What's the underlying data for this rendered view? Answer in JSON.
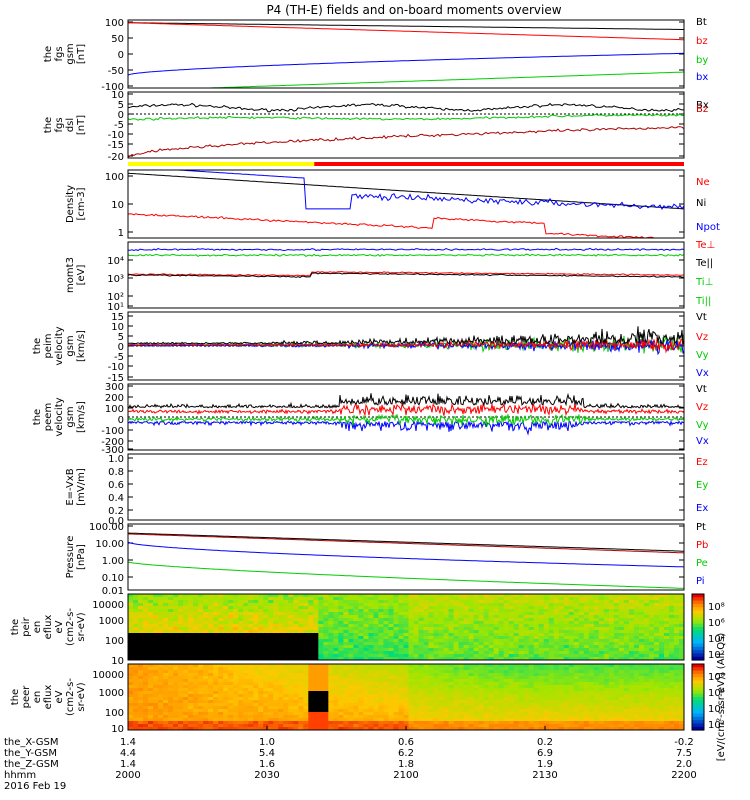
{
  "title": "P4 (TH-E) fields and on-board moments overview",
  "colors": {
    "black": "#000000",
    "red": "#ff0000",
    "green": "#00cc00",
    "blue": "#0000ff",
    "yellow": "#ffff00"
  },
  "chart_data": [
    {
      "type": "line",
      "ylabel": [
        "the",
        "fgs",
        "gsm",
        "[nT]"
      ],
      "ylim": [
        -100,
        100
      ],
      "ticks": [
        "100",
        "50",
        "0",
        "-50",
        "-100"
      ],
      "series": [
        {
          "name": "Bt",
          "color": "#000000"
        },
        {
          "name": "bz",
          "color": "#ff0000"
        },
        {
          "name": "by",
          "color": "#00cc00"
        },
        {
          "name": "bx",
          "color": "#0000ff"
        }
      ]
    },
    {
      "type": "line",
      "ylabel": [
        "the",
        "fgs",
        "dsl",
        "[nT]"
      ],
      "ylim": [
        -20,
        10
      ],
      "ticks": [
        "10",
        "5",
        "0",
        "-5",
        "-10",
        "-15",
        "-20"
      ],
      "series": [
        {
          "name": "Bx",
          "color": "#000000"
        },
        {
          "name": "Bz",
          "color": "#cc0000"
        }
      ]
    },
    {
      "type": "line",
      "ylabel": [
        "Density",
        "[cm-3]"
      ],
      "ylim": [
        1,
        100
      ],
      "scale": "log",
      "ticks": [
        "100",
        "10",
        "1"
      ],
      "series": [
        {
          "name": "Ne",
          "color": "#ff0000"
        },
        {
          "name": "Ni",
          "color": "#000000"
        },
        {
          "name": "Npot",
          "color": "#0000ff"
        }
      ]
    },
    {
      "type": "line",
      "ylabel": [
        "momt3",
        "[eV]"
      ],
      "scale": "log",
      "ticks": [
        "10⁴",
        "10³",
        "10²",
        "10¹"
      ],
      "series": [
        {
          "name": "Te⊥",
          "color": "#ff0000"
        },
        {
          "name": "Te||",
          "color": "#000000"
        },
        {
          "name": "Ti⊥",
          "color": "#00cc00"
        },
        {
          "name": "Ti||",
          "color": "#00cc00"
        }
      ]
    },
    {
      "type": "line",
      "ylabel": [
        "the",
        "peim",
        "velocity",
        "gsm",
        "[km/s]"
      ],
      "ylim": [
        -15,
        15
      ],
      "ticks": [
        "15",
        "10",
        "5",
        "0",
        "-5",
        "-10",
        "-15"
      ],
      "series": [
        {
          "name": "Vt",
          "color": "#000000"
        },
        {
          "name": "Vz",
          "color": "#ff0000"
        },
        {
          "name": "Vy",
          "color": "#00cc00"
        },
        {
          "name": "Vx",
          "color": "#0000ff"
        }
      ]
    },
    {
      "type": "line",
      "ylabel": [
        "the",
        "peem",
        "velocity",
        "gsm",
        "[km/s]"
      ],
      "ylim": [
        -300,
        300
      ],
      "ticks": [
        "300",
        "200",
        "100",
        "0",
        "-100",
        "-200",
        "-300"
      ],
      "series": [
        {
          "name": "Vt",
          "color": "#000000"
        },
        {
          "name": "Vz",
          "color": "#ff0000"
        },
        {
          "name": "Vy",
          "color": "#00cc00"
        },
        {
          "name": "Vx",
          "color": "#0000ff"
        }
      ]
    },
    {
      "type": "line",
      "ylabel": [
        "E=-VxB",
        "[mV/m]"
      ],
      "ylim": [
        0,
        1
      ],
      "ticks": [
        "1.0",
        "0.8",
        "0.6",
        "0.4",
        "0.2",
        "0.0"
      ],
      "series": [
        {
          "name": "Ez",
          "color": "#ff0000"
        },
        {
          "name": "Ey",
          "color": "#00cc00"
        },
        {
          "name": "Ex",
          "color": "#0000ff"
        }
      ]
    },
    {
      "type": "line",
      "ylabel": [
        "Pressure",
        "[nPa]"
      ],
      "ylim": [
        0.01,
        100
      ],
      "scale": "log",
      "ticks": [
        "100.00",
        "10.00",
        "1.00",
        "0.10",
        "0.01"
      ],
      "series": [
        {
          "name": "Pt",
          "color": "#000000"
        },
        {
          "name": "Pb",
          "color": "#ff0000"
        },
        {
          "name": "Pe",
          "color": "#00cc00"
        },
        {
          "name": "Pi",
          "color": "#0000ff"
        }
      ]
    },
    {
      "type": "heatmap",
      "ylabel": [
        "the",
        "peir",
        "en",
        "eflux",
        "eV",
        "(cm2-s-",
        "sr-eV)"
      ],
      "scale": "log",
      "ticks": [
        "10000",
        "1000",
        "100",
        "10"
      ],
      "colorbar_ticks": [
        "10⁸",
        "10⁶",
        "10⁴",
        "10²"
      ]
    },
    {
      "type": "heatmap",
      "ylabel": [
        "the",
        "peer",
        "en",
        "eflux",
        "eV",
        "(cm2-s-",
        "sr-eV)"
      ],
      "scale": "log",
      "ticks": [
        "10000",
        "1000",
        "100",
        "10"
      ],
      "colorbar_ticks": [
        "10⁸",
        "10⁶",
        "10⁴",
        "10²"
      ]
    }
  ],
  "colorbar_label": "[eV/(cm²-s-sr-eV)] (All Qs)",
  "axis": {
    "row_labels": [
      "the_X-GSM",
      "the_Y-GSM",
      "the_Z-GSM",
      "hhmm",
      "2016 Feb 19"
    ],
    "columns": [
      {
        "x": "1.4",
        "y": "4.4",
        "z": "1.4",
        "hhmm": "2000"
      },
      {
        "x": "1.0",
        "y": "5.4",
        "z": "1.6",
        "hhmm": "2030"
      },
      {
        "x": "0.6",
        "y": "6.2",
        "z": "1.8",
        "hhmm": "2100"
      },
      {
        "x": "0.2",
        "y": "6.9",
        "z": "1.9",
        "hhmm": "2130"
      },
      {
        "x": "-0.2",
        "y": "7.5",
        "z": "2.0",
        "hhmm": "2200"
      }
    ]
  }
}
